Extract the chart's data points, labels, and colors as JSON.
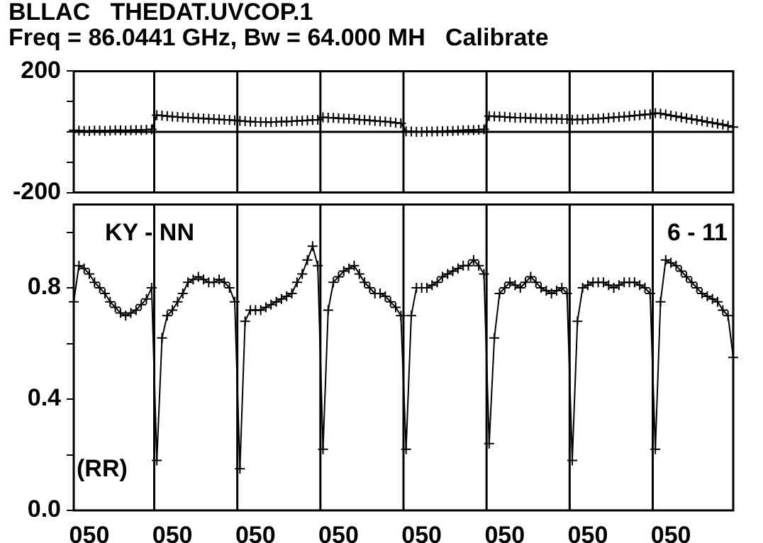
{
  "chart_data": [
    {
      "type": "line",
      "title": "BLLAC   THEDAT.UVCOP.1",
      "subtitle": "Freq = 86.0441 GHz, Bw = 64.000 MH   Calibrate",
      "color": "#000000",
      "marker": "cross",
      "grid": "x",
      "tick_labels": "y",
      "categories": [
        null,
        null,
        null,
        "050",
        null,
        null,
        null,
        null,
        null,
        null,
        null,
        null,
        null,
        null,
        null,
        null,
        null,
        null,
        null,
        "050",
        null,
        null,
        null,
        null,
        null,
        null,
        null,
        null,
        null,
        null,
        null,
        null,
        null,
        null,
        null,
        "050",
        null,
        null,
        null,
        null,
        null,
        null,
        null,
        null,
        null,
        null,
        null,
        null,
        null,
        null,
        null,
        "050",
        null,
        null,
        null,
        null,
        null,
        null,
        null,
        null,
        null,
        null,
        null,
        null,
        null,
        null,
        null,
        "050",
        null,
        null,
        null,
        null,
        null,
        null,
        null,
        null,
        null,
        null,
        null,
        null,
        null,
        null,
        null,
        "050",
        null,
        null,
        null,
        null,
        null,
        null,
        null,
        null,
        null,
        null,
        null,
        null,
        null,
        null,
        null,
        "050",
        null,
        null,
        null,
        null,
        null,
        null,
        null,
        null,
        null,
        null,
        null,
        null,
        null,
        null,
        null,
        "050",
        null,
        null,
        null,
        null,
        null,
        null,
        null,
        null,
        null,
        null,
        null,
        null
      ],
      "values": [
        5,
        4,
        3,
        3,
        4,
        4,
        3,
        4,
        5,
        5,
        4,
        5,
        6,
        6,
        7,
        8,
        55,
        54,
        52,
        50,
        49,
        48,
        47,
        46,
        45,
        44,
        43,
        42,
        41,
        40,
        39,
        38,
        36,
        35,
        34,
        33,
        33,
        32,
        32,
        33,
        34,
        34,
        35,
        36,
        37,
        38,
        39,
        40,
        48,
        47,
        46,
        45,
        44,
        43,
        42,
        40,
        39,
        38,
        36,
        35,
        34,
        32,
        30,
        28,
        2,
        1,
        0,
        0,
        1,
        1,
        2,
        2,
        3,
        3,
        4,
        5,
        6,
        6,
        7,
        8,
        52,
        51,
        50,
        49,
        48,
        47,
        47,
        46,
        45,
        45,
        44,
        44,
        43,
        43,
        42,
        42,
        40,
        41,
        41,
        42,
        43,
        44,
        45,
        46,
        48,
        49,
        50,
        52,
        54,
        55,
        57,
        58,
        62,
        60,
        57,
        54,
        51,
        48,
        45,
        42,
        39,
        36,
        33,
        30,
        27,
        24,
        20,
        16
      ],
      "ylim": [
        -200,
        200
      ],
      "yticks": [
        -200,
        {
          "value": -100,
          "label": null
        },
        {
          "value": 0,
          "label": null
        },
        {
          "value": 100,
          "label": null
        },
        200
      ],
      "ref_lines": [
        {
          "axis": "y",
          "value": 0
        }
      ]
    },
    {
      "type": "line",
      "color": "#000000",
      "marker": "cross",
      "grid": "x",
      "annotations": [
        "KY - NN",
        "6 - 11",
        "(RR)"
      ],
      "categories": [
        null,
        null,
        null,
        "050",
        null,
        null,
        null,
        null,
        null,
        null,
        null,
        null,
        null,
        null,
        null,
        null,
        null,
        null,
        null,
        "050",
        null,
        null,
        null,
        null,
        null,
        null,
        null,
        null,
        null,
        null,
        null,
        null,
        null,
        null,
        null,
        "050",
        null,
        null,
        null,
        null,
        null,
        null,
        null,
        null,
        null,
        null,
        null,
        null,
        null,
        null,
        null,
        "050",
        null,
        null,
        null,
        null,
        null,
        null,
        null,
        null,
        null,
        null,
        null,
        null,
        null,
        null,
        null,
        "050",
        null,
        null,
        null,
        null,
        null,
        null,
        null,
        null,
        null,
        null,
        null,
        null,
        null,
        null,
        null,
        "050",
        null,
        null,
        null,
        null,
        null,
        null,
        null,
        null,
        null,
        null,
        null,
        null,
        null,
        null,
        null,
        "050",
        null,
        null,
        null,
        null,
        null,
        null,
        null,
        null,
        null,
        null,
        null,
        null,
        null,
        null,
        null,
        "050",
        null,
        null,
        null,
        null,
        null,
        null,
        null,
        null,
        null,
        null,
        null,
        null
      ],
      "values": [
        0.75,
        0.88,
        0.87,
        0.85,
        0.82,
        0.8,
        0.78,
        0.75,
        0.73,
        0.71,
        0.7,
        0.71,
        0.72,
        0.74,
        0.76,
        0.8,
        0.18,
        0.62,
        0.7,
        0.72,
        0.75,
        0.78,
        0.82,
        0.83,
        0.84,
        0.83,
        0.82,
        0.82,
        0.83,
        0.82,
        0.8,
        0.75,
        0.15,
        0.68,
        0.72,
        0.72,
        0.72,
        0.73,
        0.74,
        0.75,
        0.76,
        0.77,
        0.78,
        0.82,
        0.85,
        0.9,
        0.95,
        0.88,
        0.22,
        0.72,
        0.82,
        0.84,
        0.86,
        0.87,
        0.88,
        0.85,
        0.82,
        0.8,
        0.78,
        0.78,
        0.77,
        0.75,
        0.73,
        0.7,
        0.22,
        0.7,
        0.8,
        0.8,
        0.8,
        0.81,
        0.82,
        0.84,
        0.85,
        0.86,
        0.87,
        0.88,
        0.88,
        0.9,
        0.88,
        0.85,
        0.24,
        0.62,
        0.78,
        0.8,
        0.82,
        0.81,
        0.8,
        0.82,
        0.84,
        0.82,
        0.8,
        0.79,
        0.78,
        0.79,
        0.8,
        0.78,
        0.18,
        0.68,
        0.8,
        0.81,
        0.82,
        0.82,
        0.82,
        0.81,
        0.8,
        0.81,
        0.82,
        0.82,
        0.82,
        0.81,
        0.8,
        0.78,
        0.22,
        0.75,
        0.9,
        0.89,
        0.88,
        0.86,
        0.84,
        0.82,
        0.8,
        0.78,
        0.77,
        0.76,
        0.75,
        0.72,
        0.7,
        0.55
      ],
      "ylim": [
        0,
        1.1
      ],
      "yticks": [
        {
          "value": 0,
          "label": "0.0"
        },
        {
          "value": 0.2,
          "label": null
        },
        0.4,
        {
          "value": 0.6,
          "label": null
        },
        0.8,
        {
          "value": 1.0,
          "label": null
        }
      ]
    }
  ]
}
